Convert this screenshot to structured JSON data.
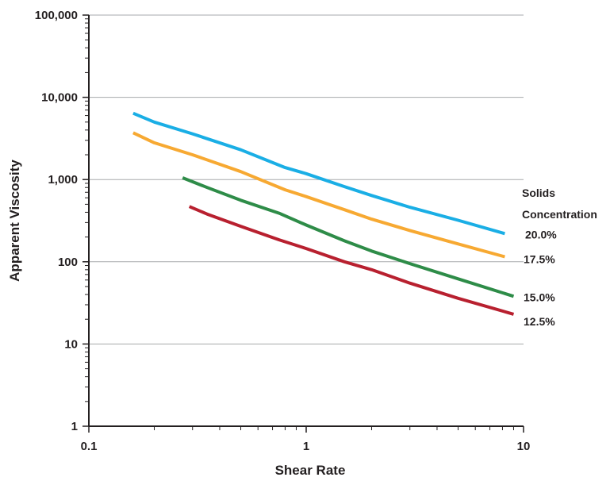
{
  "chart_data": {
    "type": "line",
    "title": "",
    "xlabel": "Shear Rate",
    "ylabel": "Apparent Viscosity",
    "x_scale": "log",
    "y_scale": "log",
    "xlim": [
      0.1,
      10
    ],
    "ylim": [
      1,
      100000
    ],
    "x_ticks": [
      0.1,
      1,
      10
    ],
    "x_tick_labels": [
      "0.1",
      "1",
      "10"
    ],
    "y_ticks": [
      1,
      10,
      100,
      1000,
      10000,
      100000
    ],
    "y_tick_labels": [
      "1",
      "10",
      "100",
      "1,000",
      "10,000",
      "100,000"
    ],
    "grid": "horizontal",
    "legend_title": [
      "Solids",
      "Concentration"
    ],
    "legend_placement": "right",
    "series": [
      {
        "name": "20.0%",
        "color": "#1aaee5",
        "x": [
          0.16,
          0.2,
          0.3,
          0.5,
          0.8,
          1,
          1.5,
          2,
          3,
          5,
          8.2
        ],
        "y": [
          6400,
          5000,
          3600,
          2300,
          1400,
          1180,
          820,
          640,
          460,
          320,
          220
        ]
      },
      {
        "name": "17.5%",
        "color": "#f7a932",
        "x": [
          0.16,
          0.2,
          0.3,
          0.5,
          0.8,
          1,
          1.5,
          2,
          3,
          5,
          8.2
        ],
        "y": [
          3700,
          2800,
          2000,
          1250,
          750,
          620,
          430,
          330,
          240,
          165,
          115
        ]
      },
      {
        "name": "15.0%",
        "color": "#2e8c48",
        "x": [
          0.27,
          0.35,
          0.5,
          0.75,
          1,
          1.5,
          2,
          3,
          5,
          9
        ],
        "y": [
          1050,
          800,
          560,
          390,
          280,
          180,
          135,
          95,
          62,
          38
        ]
      },
      {
        "name": "12.5%",
        "color": "#b8202f",
        "x": [
          0.29,
          0.35,
          0.5,
          0.75,
          1,
          1.5,
          2,
          3,
          5,
          9
        ],
        "y": [
          470,
          380,
          270,
          185,
          145,
          100,
          80,
          55,
          36,
          23
        ]
      }
    ]
  }
}
